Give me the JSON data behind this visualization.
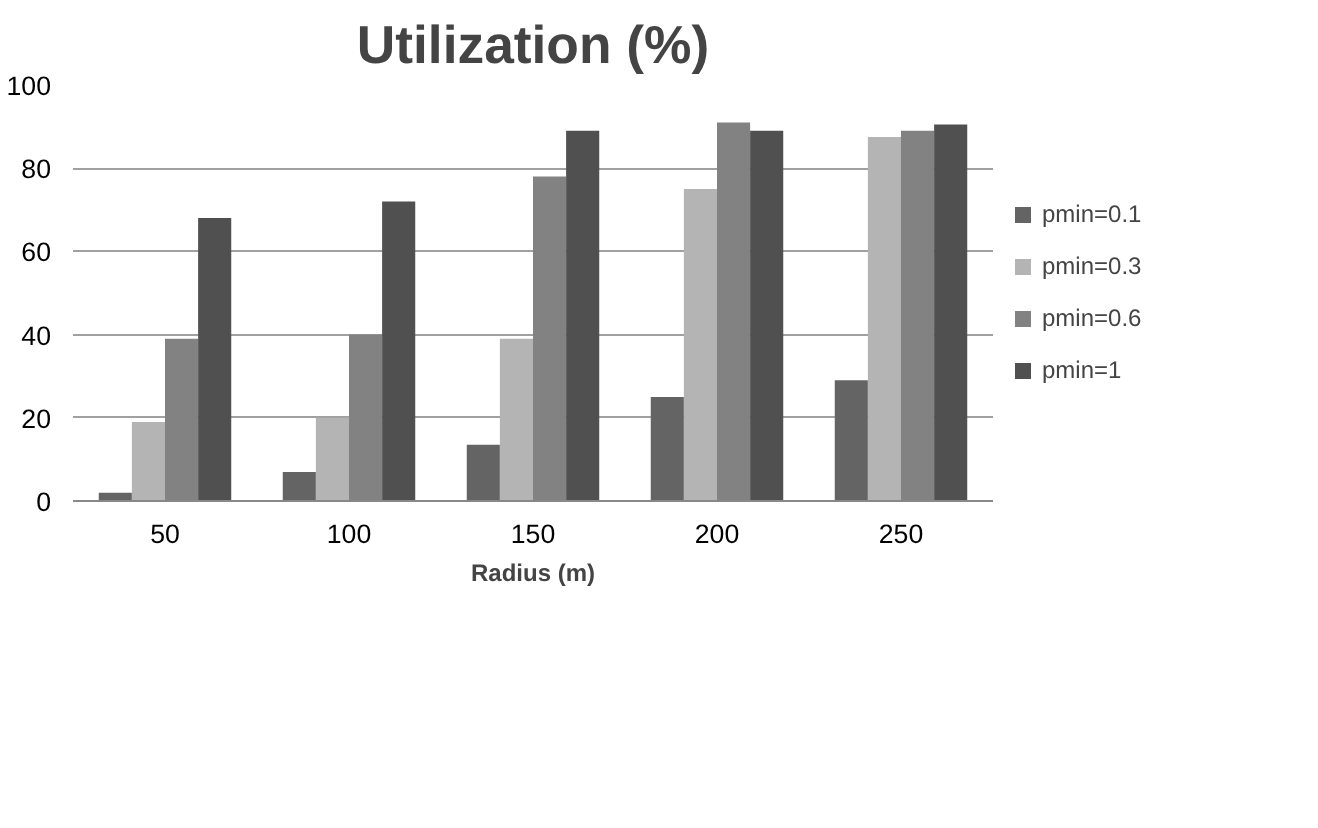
{
  "chart_data": {
    "type": "bar",
    "title": "Utilization (%)",
    "xlabel": "Radius (m)",
    "categories": [
      "50",
      "100",
      "150",
      "200",
      "250"
    ],
    "series": [
      {
        "name": "pmin=0.1",
        "color": "#646464",
        "values": [
          2,
          7,
          13.5,
          25,
          29
        ]
      },
      {
        "name": "pmin=0.3",
        "color": "#b4b4b4",
        "values": [
          19,
          20,
          39,
          75,
          87.5
        ]
      },
      {
        "name": "pmin=0.6",
        "color": "#828282",
        "values": [
          39,
          40,
          78,
          91,
          89
        ]
      },
      {
        "name": "pmin=1",
        "color": "#505050",
        "values": [
          68,
          72,
          89,
          89,
          90.5
        ]
      }
    ],
    "ylim": [
      0,
      100
    ],
    "yticks": [
      0,
      20,
      40,
      60,
      80,
      100
    ],
    "grid": "y",
    "legend": "right"
  }
}
